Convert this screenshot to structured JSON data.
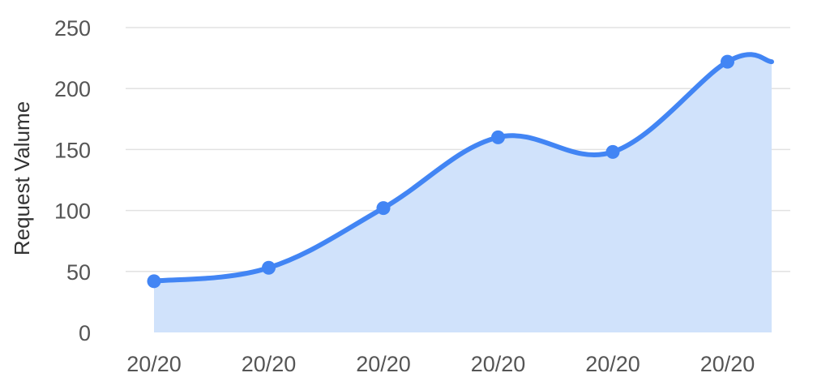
{
  "chart_data": {
    "type": "area",
    "title": "",
    "xlabel": "",
    "ylabel": "Request Valume",
    "ylim": [
      0,
      250
    ],
    "yticks": [
      0,
      50,
      100,
      150,
      200,
      250
    ],
    "grid": true,
    "categories": [
      "20/20",
      "20/20",
      "20/20",
      "20/20",
      "20/20",
      "20/20"
    ],
    "series": [
      {
        "values": [
          42,
          53,
          102,
          160,
          148,
          222
        ],
        "end_value": 222,
        "color": "#4285f4",
        "fill": "#d0e2fb"
      }
    ]
  }
}
